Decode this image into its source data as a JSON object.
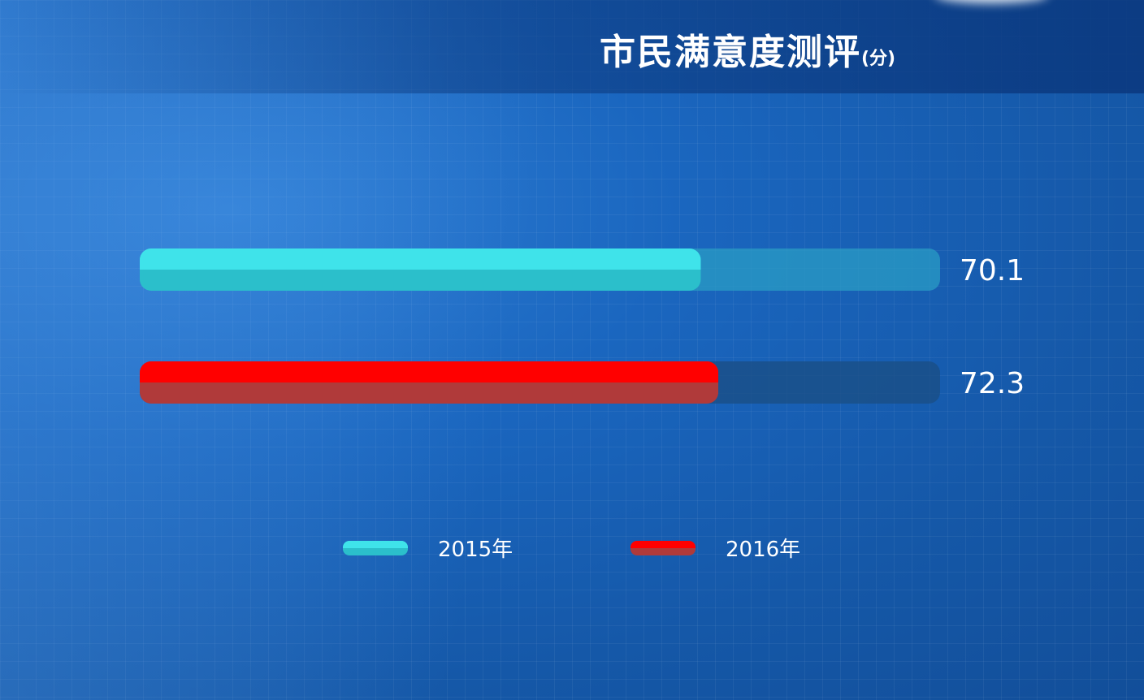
{
  "chart_data": {
    "type": "bar",
    "orientation": "horizontal",
    "title": "市民满意度测评",
    "unit": "(分)",
    "xlim": [
      0,
      100
    ],
    "series": [
      {
        "name": "2015年",
        "values": [
          70.1
        ],
        "color": "#3fe3ea",
        "color_dark": "#2bbfcb"
      },
      {
        "name": "2016年",
        "values": [
          72.3
        ],
        "color": "#ff0000",
        "color_dark": "#b03a3a"
      }
    ],
    "data_labels": [
      "70.1",
      "72.3"
    ],
    "legend_position": "bottom",
    "track_colors": [
      "#2a9cc4",
      "#1a4f86"
    ]
  }
}
